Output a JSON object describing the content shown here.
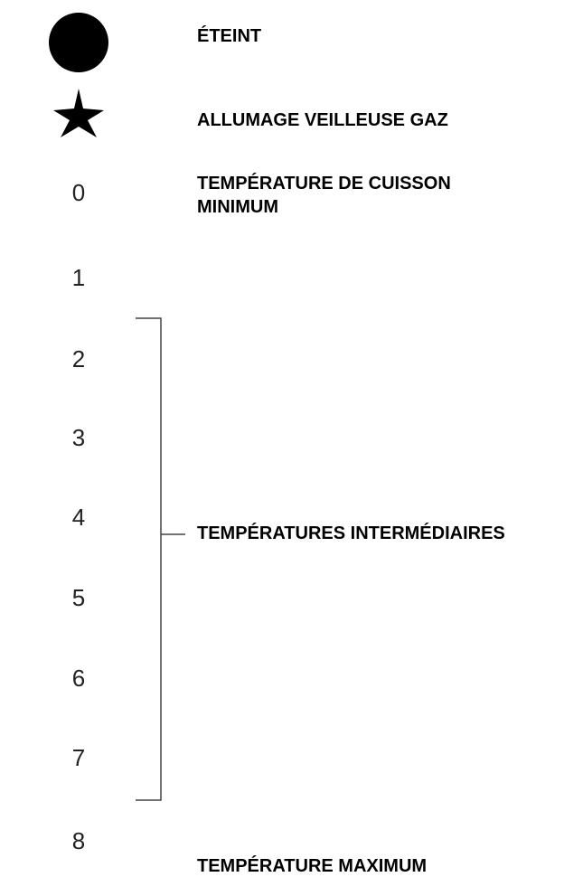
{
  "settings": [
    "0",
    "1",
    "2",
    "3",
    "4",
    "5",
    "6",
    "7",
    "8"
  ],
  "labels": {
    "off": "ÉTEINT",
    "pilot": "ALLUMAGE VEILLEUSE GAZ",
    "minimum": "TEMPÉRATURE DE CUISSON MINIMUM",
    "intermediate": "TEMPÉRATURES INTERMÉDIAIRES",
    "maximum": "TEMPÉRATURE MAXIMUM"
  }
}
